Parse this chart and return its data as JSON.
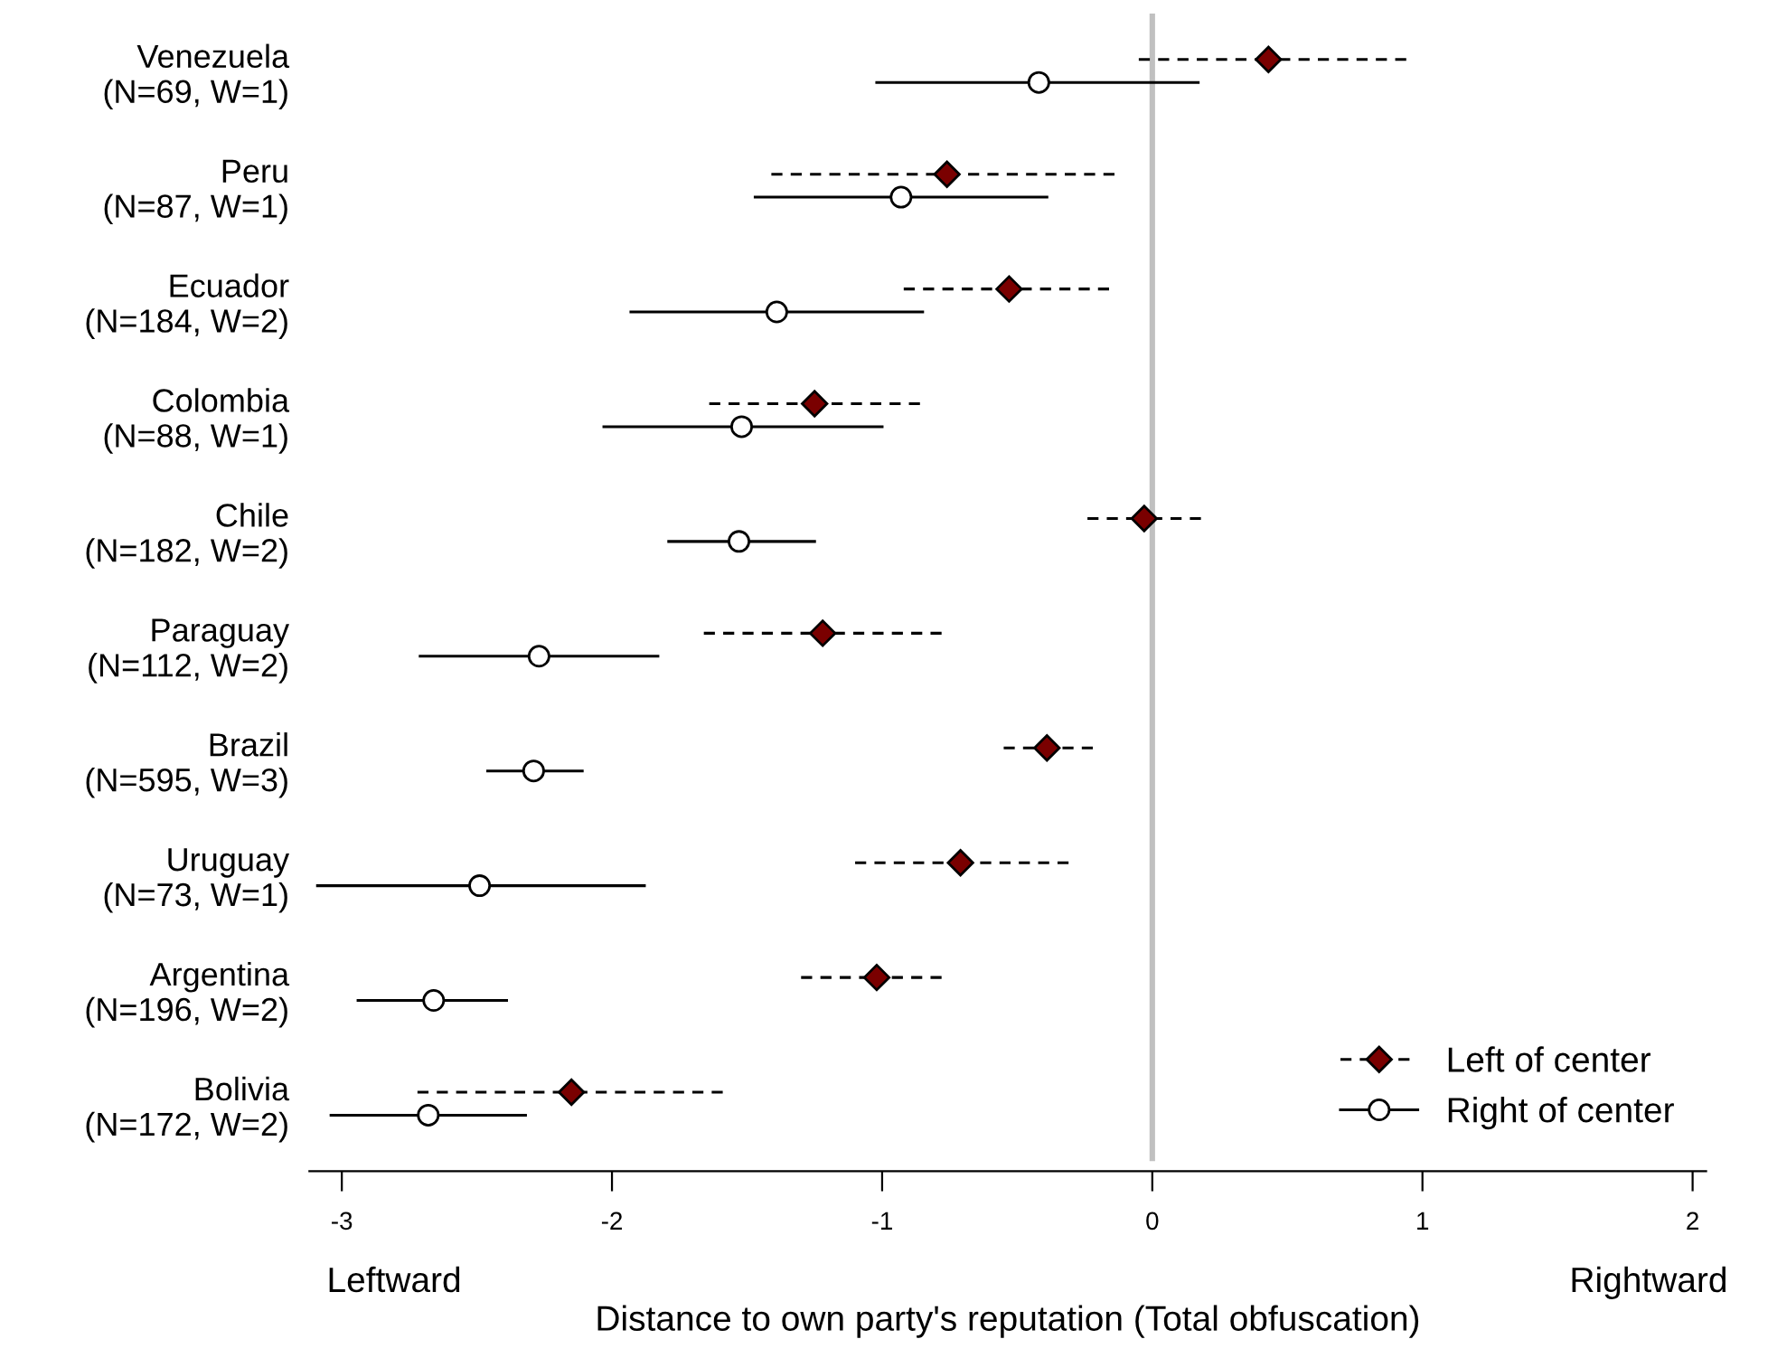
{
  "chart_data": {
    "type": "scatter",
    "orientation": "horizontal",
    "xlabel": "Distance to own party's reputation (Total obfuscation)",
    "categories": [
      "Venezuela\n(N=69, W=1)",
      "Peru\n(N=87, W=1)",
      "Ecuador\n(N=184, W=2)",
      "Colombia\n(N=88, W=1)",
      "Chile\n(N=182, W=2)",
      "Paraguay\n(N=112, W=2)",
      "Brazil\n(N=595, W=3)",
      "Uruguay\n(N=73, W=1)",
      "Argentina\n(N=196, W=2)",
      "Bolivia\n(N=172, W=2)"
    ],
    "series": [
      {
        "name": "Left of center",
        "color": "#7a0000",
        "marker": "diamond",
        "line_style": "dashed",
        "values": [
          0.43,
          -0.76,
          -0.53,
          -1.25,
          -0.03,
          -1.22,
          -0.39,
          -0.71,
          -1.02,
          -2.15
        ],
        "errors": [
          [
            -0.05,
            0.94
          ],
          [
            -1.41,
            -0.14
          ],
          [
            -0.92,
            -0.16
          ],
          [
            -1.64,
            -0.86
          ],
          [
            -0.24,
            0.18
          ],
          [
            -1.66,
            -0.78
          ],
          [
            -0.55,
            -0.22
          ],
          [
            -1.1,
            -0.31
          ],
          [
            -1.3,
            -0.78
          ],
          [
            -2.72,
            -1.59
          ]
        ]
      },
      {
        "name": "Right of center",
        "color": "#ffffff",
        "marker": "circle",
        "line_style": "solid",
        "values": [
          -0.42,
          -0.93,
          -1.39,
          -1.52,
          -1.53,
          -2.27,
          -2.29,
          -2.49,
          -2.66,
          -2.68
        ],
        "errors": [
          [
            -1.02,
            0.17
          ],
          [
            -1.47,
            -0.39
          ],
          [
            -1.93,
            -0.85
          ],
          [
            -2.03,
            -1.0
          ],
          [
            -1.79,
            -1.25
          ],
          [
            -2.71,
            -1.83
          ],
          [
            -2.46,
            -2.11
          ],
          [
            -3.09,
            -1.88
          ],
          [
            -2.94,
            -2.39
          ],
          [
            -3.04,
            -2.32
          ]
        ]
      }
    ],
    "xlim": [
      -3.12,
      2.05
    ],
    "xticks": [
      -3,
      -2,
      -1,
      0,
      1,
      2
    ],
    "ref_lines": [
      {
        "axis": "x",
        "value": 0,
        "label": null,
        "color": "#c0c0c0"
      }
    ],
    "annotations": [
      "Leftward",
      "Rightward"
    ],
    "legend": "bottom right",
    "grid": false
  }
}
